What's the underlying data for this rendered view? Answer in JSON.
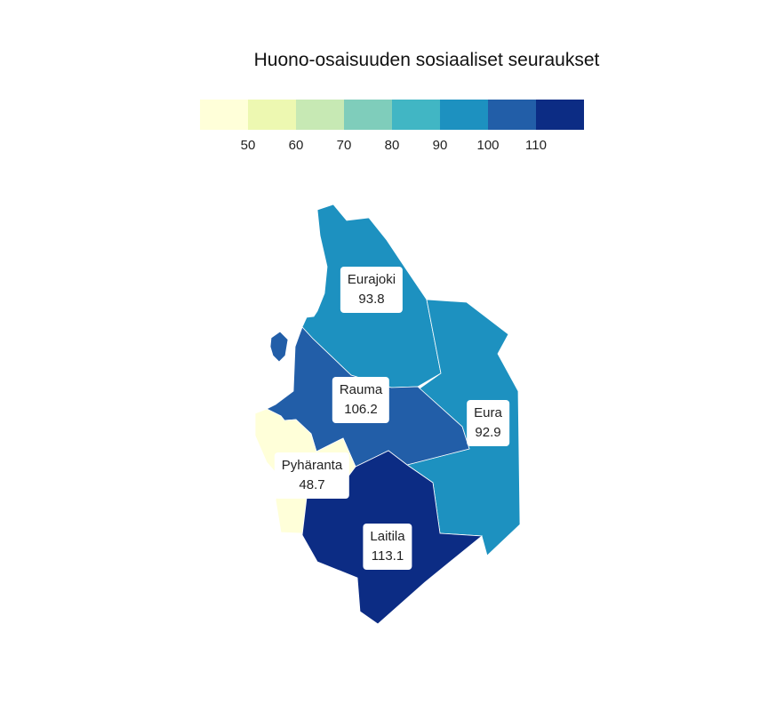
{
  "title": "Huono-osaisuuden sosiaaliset seuraukset",
  "legend": {
    "colors": [
      "#ffffd9",
      "#edf8b1",
      "#c7e9b4",
      "#7fcdbb",
      "#41b6c4",
      "#1d91c0",
      "#225ea8",
      "#0c2c84"
    ],
    "ticks": [
      "50",
      "60",
      "70",
      "80",
      "90",
      "100",
      "110"
    ]
  },
  "regions": [
    {
      "name": "Eurajoki",
      "value": "93.8",
      "color": "#1d91c0"
    },
    {
      "name": "Eura",
      "value": "92.9",
      "color": "#1d91c0"
    },
    {
      "name": "Rauma",
      "value": "106.2",
      "color": "#225ea8"
    },
    {
      "name": "Pyhäranta",
      "value": "48.7",
      "color": "#ffffd9"
    },
    {
      "name": "Laitila",
      "value": "113.1",
      "color": "#0c2c84"
    }
  ]
}
